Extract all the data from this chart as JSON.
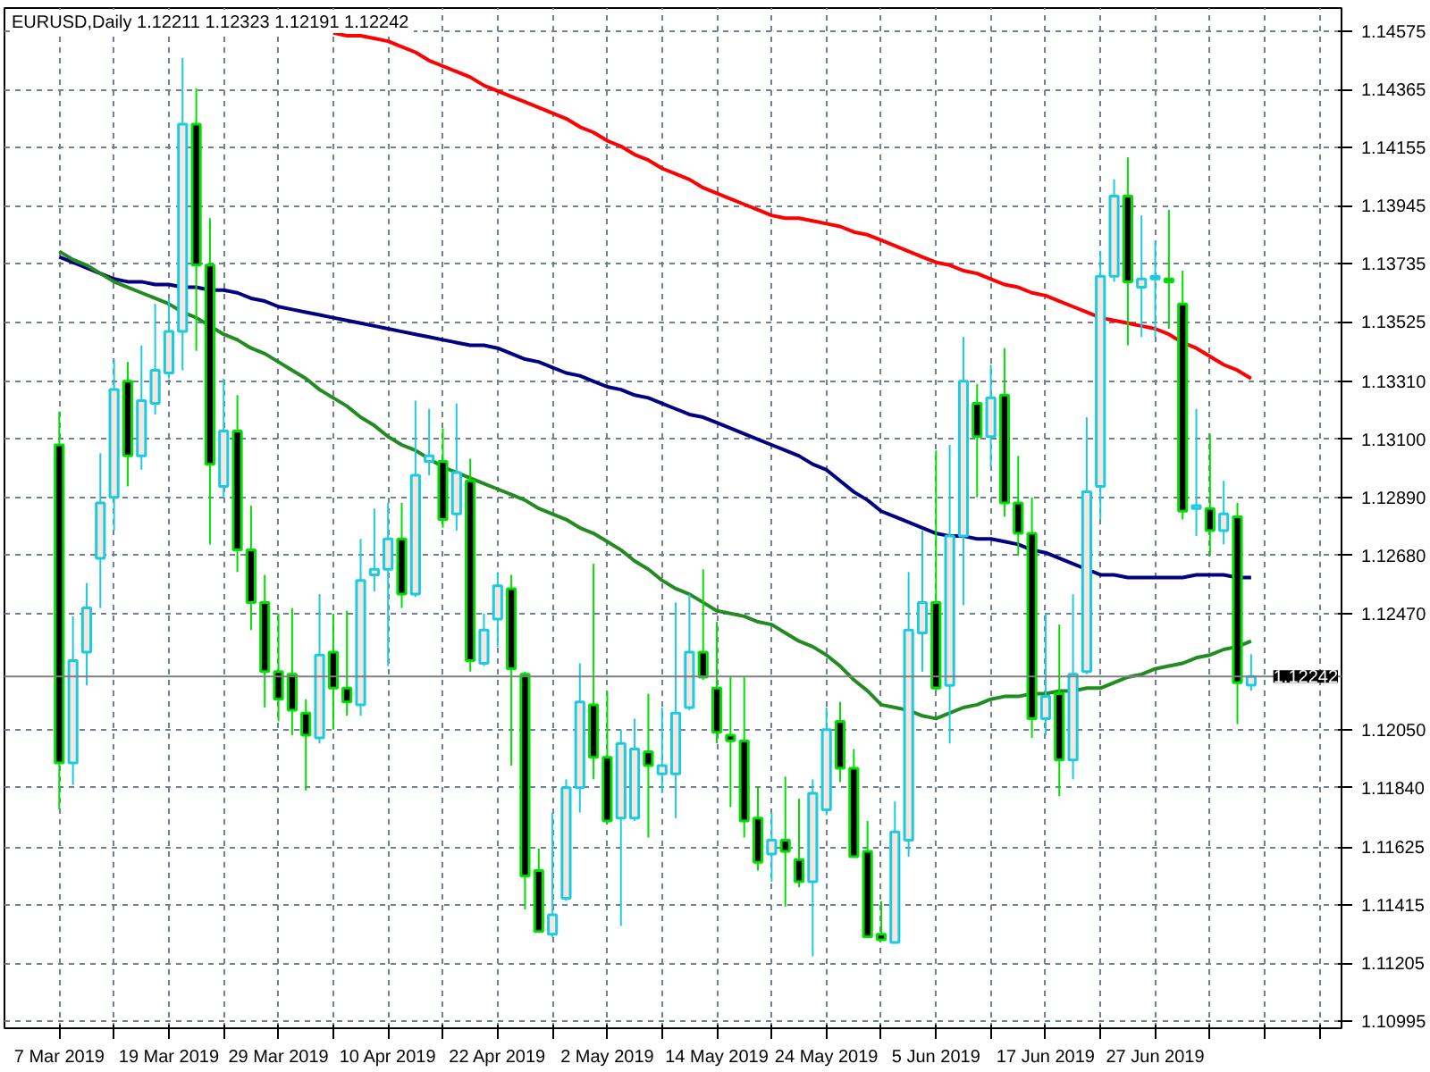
{
  "chart_data": {
    "type": "candlestick",
    "title": "EURUSD,Daily  1.12211 1.12323 1.12191 1.12242",
    "categories": [
      "7 Mar 2019",
      null,
      null,
      null,
      null,
      null,
      null,
      null,
      "19 Mar 2019",
      null,
      null,
      null,
      null,
      null,
      null,
      null,
      "29 Mar 2019",
      null,
      null,
      null,
      null,
      null,
      null,
      null,
      "10 Apr 2019",
      null,
      null,
      null,
      null,
      null,
      null,
      null,
      "22 Apr 2019",
      null,
      null,
      null,
      null,
      null,
      null,
      null,
      "2 May 2019",
      null,
      null,
      null,
      null,
      null,
      null,
      null,
      "14 May 2019",
      null,
      null,
      null,
      null,
      null,
      null,
      null,
      "24 May 2019",
      null,
      null,
      null,
      null,
      null,
      null,
      null,
      "5 Jun 2019",
      null,
      null,
      null,
      null,
      null,
      null,
      null,
      "17 Jun 2019",
      null,
      null,
      null,
      null,
      null,
      null,
      null,
      "27 Jun 2019",
      null,
      null,
      null,
      null,
      null,
      null,
      null
    ],
    "ohlc": [
      [
        1.1308,
        1.132,
        1.1176,
        1.1193
      ],
      [
        1.1193,
        1.1246,
        1.1185,
        1.123
      ],
      [
        1.1233,
        1.1258,
        1.1221,
        1.1249
      ],
      [
        1.1267,
        1.1305,
        1.1249,
        1.1287
      ],
      [
        1.1289,
        1.1339,
        1.1277,
        1.1328
      ],
      [
        1.1331,
        1.1338,
        1.1293,
        1.1304
      ],
      [
        1.1304,
        1.1344,
        1.1299,
        1.1324
      ],
      [
        1.1323,
        1.1359,
        1.1319,
        1.1335
      ],
      [
        1.1334,
        1.1361,
        1.1332,
        1.1349
      ],
      [
        1.1349,
        1.1448,
        1.1335,
        1.1424
      ],
      [
        1.1424,
        1.1437,
        1.1342,
        1.1373
      ],
      [
        1.1373,
        1.139,
        1.1272,
        1.1301
      ],
      [
        1.1293,
        1.1332,
        1.1289,
        1.1313
      ],
      [
        1.1313,
        1.1326,
        1.1262,
        1.127
      ],
      [
        1.127,
        1.1286,
        1.1241,
        1.1251
      ],
      [
        1.1251,
        1.1261,
        1.1213,
        1.1226
      ],
      [
        1.1226,
        1.1247,
        1.1208,
        1.1216
      ],
      [
        1.1225,
        1.1249,
        1.1203,
        1.1212
      ],
      [
        1.1211,
        1.1216,
        1.1183,
        1.1203
      ],
      [
        1.1202,
        1.1254,
        1.12,
        1.1232
      ],
      [
        1.1233,
        1.1247,
        1.1205,
        1.122
      ],
      [
        1.122,
        1.1248,
        1.121,
        1.1215
      ],
      [
        1.1214,
        1.1274,
        1.121,
        1.1259
      ],
      [
        1.1261,
        1.1285,
        1.1255,
        1.1263
      ],
      [
        1.1263,
        1.1287,
        1.1228,
        1.1274
      ],
      [
        1.1274,
        1.1287,
        1.1249,
        1.1254
      ],
      [
        1.1254,
        1.1324,
        1.1253,
        1.1297
      ],
      [
        1.1302,
        1.1321,
        1.1297,
        1.1304
      ],
      [
        1.1302,
        1.1314,
        1.1278,
        1.1281
      ],
      [
        1.1283,
        1.1323,
        1.1277,
        1.1298
      ],
      [
        1.1295,
        1.1303,
        1.1226,
        1.123
      ],
      [
        1.1229,
        1.1247,
        1.1228,
        1.1241
      ],
      [
        1.1245,
        1.1262,
        1.1235,
        1.1257
      ],
      [
        1.1256,
        1.1261,
        1.1192,
        1.1227
      ],
      [
        1.1225,
        1.1226,
        1.114,
        1.1152
      ],
      [
        1.1154,
        1.1162,
        1.1132,
        1.1132
      ],
      [
        1.1131,
        1.1175,
        1.113,
        1.1138
      ],
      [
        1.1144,
        1.1187,
        1.1143,
        1.1184
      ],
      [
        1.1184,
        1.1229,
        1.1175,
        1.1215
      ],
      [
        1.1214,
        1.1265,
        1.1187,
        1.1195
      ],
      [
        1.1195,
        1.1219,
        1.1171,
        1.1172
      ],
      [
        1.1173,
        1.1205,
        1.1134,
        1.12
      ],
      [
        1.1173,
        1.1209,
        1.1172,
        1.1198
      ],
      [
        1.1197,
        1.1218,
        1.1166,
        1.1192
      ],
      [
        1.1189,
        1.1213,
        1.1182,
        1.1192
      ],
      [
        1.1189,
        1.1251,
        1.1173,
        1.1211
      ],
      [
        1.1213,
        1.1254,
        1.1212,
        1.1233
      ],
      [
        1.1233,
        1.1263,
        1.1223,
        1.1224
      ],
      [
        1.122,
        1.1244,
        1.12,
        1.1204
      ],
      [
        1.1203,
        1.1224,
        1.1177,
        1.1201
      ],
      [
        1.1201,
        1.1224,
        1.1166,
        1.1172
      ],
      [
        1.1173,
        1.1184,
        1.1154,
        1.1157
      ],
      [
        1.116,
        1.1175,
        1.115,
        1.1165
      ],
      [
        1.1165,
        1.1188,
        1.1141,
        1.1161
      ],
      [
        1.1158,
        1.118,
        1.1148,
        1.115
      ],
      [
        1.115,
        1.1187,
        1.1123,
        1.1182
      ],
      [
        1.1176,
        1.1213,
        1.1174,
        1.1205
      ],
      [
        1.1208,
        1.1215,
        1.1186,
        1.1191
      ],
      [
        1.1191,
        1.1198,
        1.1159,
        1.1159
      ],
      [
        1.1161,
        1.1172,
        1.113,
        1.113
      ],
      [
        1.1131,
        1.1143,
        1.1129,
        1.1129
      ],
      [
        1.1128,
        1.1179,
        1.1128,
        1.1168
      ],
      [
        1.1165,
        1.1262,
        1.1159,
        1.1241
      ],
      [
        1.124,
        1.1277,
        1.1226,
        1.1251
      ],
      [
        1.1251,
        1.1306,
        1.1219,
        1.122
      ],
      [
        1.1221,
        1.1308,
        1.12,
        1.1275
      ],
      [
        1.1275,
        1.1347,
        1.125,
        1.1331
      ],
      [
        1.1323,
        1.133,
        1.1289,
        1.1311
      ],
      [
        1.1311,
        1.1337,
        1.13,
        1.1325
      ],
      [
        1.1326,
        1.1343,
        1.1282,
        1.1287
      ],
      [
        1.1287,
        1.1304,
        1.1268,
        1.1276
      ],
      [
        1.1276,
        1.1289,
        1.1202,
        1.1209
      ],
      [
        1.1209,
        1.1247,
        1.1203,
        1.1217
      ],
      [
        1.1218,
        1.1243,
        1.1181,
        1.1194
      ],
      [
        1.1194,
        1.1254,
        1.1187,
        1.1225
      ],
      [
        1.1226,
        1.1318,
        1.1225,
        1.1291
      ],
      [
        1.1293,
        1.1378,
        1.1281,
        1.1369
      ],
      [
        1.1369,
        1.1404,
        1.1367,
        1.1398
      ],
      [
        1.1398,
        1.1412,
        1.1344,
        1.1367
      ],
      [
        1.1365,
        1.1391,
        1.1347,
        1.1368
      ],
      [
        1.1368,
        1.1382,
        1.1347,
        1.1369
      ],
      [
        1.1368,
        1.1393,
        1.135,
        1.1367
      ],
      [
        1.1359,
        1.1371,
        1.1281,
        1.1284
      ],
      [
        1.1285,
        1.1321,
        1.1275,
        1.1286
      ],
      [
        1.1285,
        1.1312,
        1.1268,
        1.1277
      ],
      [
        1.1277,
        1.1295,
        1.1272,
        1.1283
      ],
      [
        1.1282,
        1.1287,
        1.1207,
        1.1222
      ],
      [
        1.12211,
        1.12323,
        1.12191,
        1.12242
      ]
    ],
    "series": [
      {
        "type": "line",
        "color": "#ff0000",
        "values": [
          null,
          null,
          null,
          null,
          null,
          null,
          null,
          null,
          null,
          null,
          null,
          null,
          null,
          null,
          null,
          null,
          null,
          null,
          null,
          null,
          1.1457,
          1.1456,
          1.1456,
          1.1455,
          1.1454,
          1.1452,
          1.145,
          1.1447,
          1.1445,
          1.1443,
          1.1441,
          1.1438,
          1.1436,
          1.1434,
          1.1432,
          1.143,
          1.1428,
          1.1426,
          1.1423,
          1.1421,
          1.1418,
          1.1416,
          1.1413,
          1.1411,
          1.1408,
          1.1406,
          1.1404,
          1.1401,
          1.1399,
          1.1397,
          1.1395,
          1.1393,
          1.1391,
          1.139,
          1.139,
          1.1389,
          1.1388,
          1.1387,
          1.1385,
          1.1384,
          1.1382,
          1.138,
          1.1378,
          1.1376,
          1.1374,
          1.1373,
          1.1371,
          1.137,
          1.1368,
          1.1366,
          1.1365,
          1.1363,
          1.1362,
          1.136,
          1.1358,
          1.1356,
          1.1354,
          1.1353,
          1.1352,
          1.1351,
          1.135,
          1.1348,
          1.1345,
          1.1343,
          1.134,
          1.1337,
          1.1335,
          1.1332
        ]
      },
      {
        "type": "line",
        "color": "#000080",
        "values": [
          1.1376,
          1.1374,
          1.1372,
          1.137,
          1.1368,
          1.1367,
          1.1367,
          1.1366,
          1.1366,
          1.1365,
          1.1365,
          1.1364,
          1.1364,
          1.1363,
          1.1361,
          1.136,
          1.1358,
          1.1357,
          1.1356,
          1.1355,
          1.1354,
          1.1353,
          1.1352,
          1.1351,
          1.135,
          1.1349,
          1.1348,
          1.1347,
          1.1346,
          1.1345,
          1.1344,
          1.1344,
          1.1343,
          1.1341,
          1.1339,
          1.1338,
          1.1336,
          1.1334,
          1.1333,
          1.1331,
          1.1329,
          1.1328,
          1.1326,
          1.1325,
          1.1323,
          1.1321,
          1.1319,
          1.1318,
          1.1316,
          1.1314,
          1.1312,
          1.131,
          1.1308,
          1.1306,
          1.1304,
          1.1301,
          1.1299,
          1.1295,
          1.1291,
          1.1288,
          1.1284,
          1.1282,
          1.128,
          1.1278,
          1.1276,
          1.1275,
          1.1275,
          1.1274,
          1.1274,
          1.1273,
          1.1272,
          1.127,
          1.1269,
          1.1267,
          1.1265,
          1.1263,
          1.1261,
          1.1261,
          1.126,
          1.126,
          1.126,
          1.126,
          1.126,
          1.1261,
          1.1261,
          1.1261,
          1.126,
          1.126
        ]
      },
      {
        "type": "line",
        "color": "#228b22",
        "values": [
          1.1378,
          1.1375,
          1.1373,
          1.137,
          1.1367,
          1.1365,
          1.1363,
          1.1361,
          1.1359,
          1.1356,
          1.1354,
          1.1351,
          1.1348,
          1.1346,
          1.1343,
          1.1341,
          1.1338,
          1.1335,
          1.1332,
          1.1328,
          1.1325,
          1.1322,
          1.1318,
          1.1315,
          1.1311,
          1.1308,
          1.1306,
          1.1303,
          1.13,
          1.1298,
          1.1296,
          1.1294,
          1.1292,
          1.129,
          1.1288,
          1.1285,
          1.1283,
          1.1281,
          1.1278,
          1.1276,
          1.1273,
          1.127,
          1.1266,
          1.1263,
          1.1259,
          1.1256,
          1.1254,
          1.1251,
          1.1248,
          1.1247,
          1.1246,
          1.1244,
          1.1243,
          1.124,
          1.1237,
          1.1235,
          1.1232,
          1.1228,
          1.1223,
          1.1219,
          1.1214,
          1.1213,
          1.1212,
          1.121,
          1.1209,
          1.1211,
          1.1213,
          1.1214,
          1.1216,
          1.1217,
          1.1217,
          1.1218,
          1.1218,
          1.1219,
          1.1219,
          1.122,
          1.122,
          1.1222,
          1.1224,
          1.1225,
          1.1227,
          1.1228,
          1.1229,
          1.1231,
          1.1232,
          1.1234,
          1.1235,
          1.1237
        ]
      }
    ],
    "ylim": [
      1.1097,
      1.1466
    ],
    "yticks": [
      {
        "value": 1.10995,
        "label": "1.10995"
      },
      {
        "value": 1.11205,
        "label": "1.11205"
      },
      {
        "value": 1.11415,
        "label": "1.11415"
      },
      {
        "value": 1.11625,
        "label": "1.11625"
      },
      {
        "value": 1.1184,
        "label": "1.11840"
      },
      {
        "value": 1.1205,
        "label": "1.12050"
      },
      {
        "value": 1.1247,
        "label": "1.12470"
      },
      {
        "value": 1.1268,
        "label": "1.12680"
      },
      {
        "value": 1.1289,
        "label": "1.12890"
      },
      {
        "value": 1.131,
        "label": "1.13100"
      },
      {
        "value": 1.1331,
        "label": "1.13310"
      },
      {
        "value": 1.13525,
        "label": "1.13525"
      },
      {
        "value": 1.13735,
        "label": "1.13735"
      },
      {
        "value": 1.13945,
        "label": "1.13945"
      },
      {
        "value": 1.14155,
        "label": "1.14155"
      },
      {
        "value": 1.14365,
        "label": "1.14365"
      },
      {
        "value": 1.14575,
        "label": "1.14575"
      }
    ],
    "grid": true,
    "ref_lines": [
      {
        "axis": "y",
        "value": 1.12242,
        "label": "1.12242",
        "color": "#808080"
      }
    ]
  }
}
